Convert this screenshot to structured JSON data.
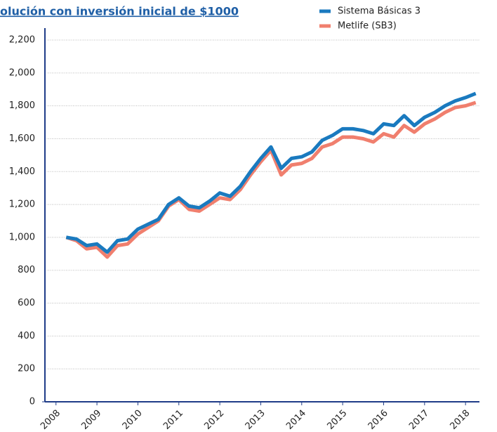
{
  "chart_data": {
    "type": "line",
    "title": "olución con inversión inicial de $1000",
    "x": [
      2008.25,
      2008.5,
      2008.75,
      2009.0,
      2009.25,
      2009.5,
      2009.75,
      2010.0,
      2010.25,
      2010.5,
      2010.75,
      2011.0,
      2011.25,
      2011.5,
      2011.75,
      2012.0,
      2012.25,
      2012.5,
      2012.75,
      2013.0,
      2013.25,
      2013.5,
      2013.75,
      2014.0,
      2014.25,
      2014.5,
      2014.75,
      2015.0,
      2015.25,
      2015.5,
      2015.75,
      2016.0,
      2016.25,
      2016.5,
      2016.75,
      2017.0,
      2017.25,
      2017.5,
      2017.75,
      2018.0,
      2018.25
    ],
    "series": [
      {
        "name": "Sistema Básicas 3",
        "color": "#1a7abf",
        "values": [
          1000,
          990,
          950,
          960,
          910,
          980,
          990,
          1050,
          1080,
          1110,
          1200,
          1240,
          1190,
          1180,
          1220,
          1270,
          1250,
          1310,
          1400,
          1480,
          1550,
          1420,
          1480,
          1490,
          1520,
          1590,
          1620,
          1660,
          1660,
          1650,
          1630,
          1690,
          1680,
          1740,
          1680,
          1730,
          1760,
          1800,
          1830,
          1850,
          1875
        ]
      },
      {
        "name": "Metlife (SB3)",
        "color": "#f07f6e",
        "values": [
          1000,
          980,
          930,
          940,
          880,
          950,
          960,
          1020,
          1060,
          1100,
          1190,
          1230,
          1170,
          1160,
          1200,
          1240,
          1230,
          1290,
          1380,
          1460,
          1530,
          1380,
          1440,
          1450,
          1480,
          1550,
          1570,
          1610,
          1610,
          1600,
          1580,
          1630,
          1610,
          1680,
          1640,
          1690,
          1720,
          1760,
          1790,
          1800,
          1820
        ]
      }
    ],
    "xlim": [
      2007.73,
      2018.34
    ],
    "xticks": [
      2008,
      2009,
      2010,
      2011,
      2012,
      2013,
      2014,
      2015,
      2016,
      2017,
      2018
    ],
    "ylim": [
      0,
      2200
    ],
    "yticks": [
      0,
      200,
      400,
      600,
      800,
      {
        "value": 1000,
        "label": "1,000"
      },
      {
        "value": 1200,
        "label": "1,200"
      },
      {
        "value": 1400,
        "label": "1,400"
      },
      {
        "value": 1600,
        "label": "1,600"
      },
      {
        "value": 1800,
        "label": "1,800"
      },
      {
        "value": 2000,
        "label": "2,000"
      },
      {
        "value": 2200,
        "label": "2,200"
      }
    ],
    "grid": true,
    "legend": "top-right"
  }
}
